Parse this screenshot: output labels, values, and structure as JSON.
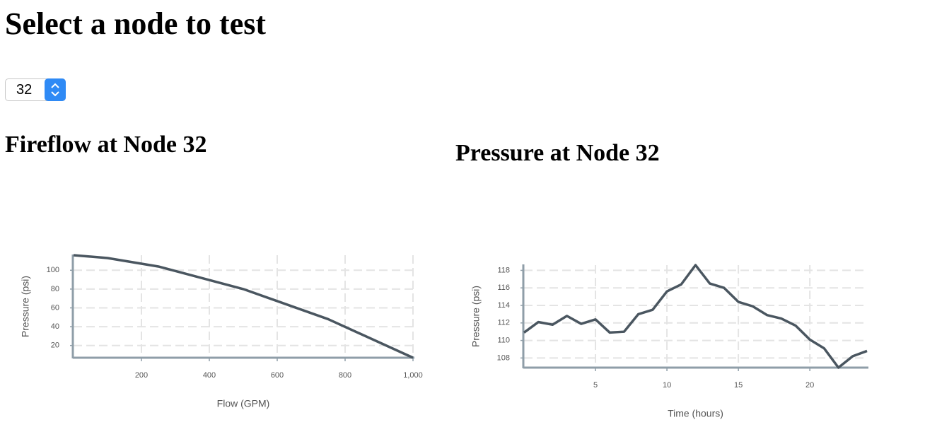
{
  "header": {
    "title": "Select a node to test"
  },
  "select": {
    "value": "32"
  },
  "chart_data": [
    {
      "type": "line",
      "title": "Fireflow at Node 32",
      "xlabel": "Flow (GPM)",
      "ylabel": "Pressure (psi)",
      "x": [
        0,
        100,
        250,
        500,
        750,
        1000
      ],
      "values": [
        116,
        113,
        104,
        80,
        48,
        7
      ],
      "xlim": [
        0,
        1000
      ],
      "ylim": [
        7,
        116
      ],
      "xticks": [
        200,
        400,
        600,
        800,
        {
          "value": 1000,
          "label": "1,000"
        }
      ],
      "yticks": [
        20,
        40,
        60,
        80,
        100
      ],
      "grid": true,
      "color": "#4a5660"
    },
    {
      "type": "line",
      "title": "Pressure at Node 32",
      "xlabel": "Time (hours)",
      "ylabel": "Pressure (psi)",
      "x": [
        0,
        1,
        2,
        3,
        4,
        5,
        6,
        7,
        8,
        9,
        10,
        11,
        12,
        13,
        14,
        15,
        16,
        17,
        18,
        19,
        20,
        21,
        22,
        23,
        24
      ],
      "values": [
        110.9,
        112.1,
        111.8,
        112.8,
        111.9,
        112.4,
        110.9,
        111.0,
        113.0,
        113.5,
        115.6,
        116.4,
        118.6,
        116.5,
        116.0,
        114.4,
        113.9,
        112.9,
        112.5,
        111.7,
        110.1,
        109.1,
        106.9,
        108.2,
        108.8
      ],
      "xlim": [
        0,
        24
      ],
      "ylim": [
        106.9,
        118.6
      ],
      "xticks": [
        5,
        10,
        15,
        20
      ],
      "yticks": [
        108,
        110,
        112,
        114,
        116,
        118
      ],
      "grid": true,
      "color": "#4a5660"
    }
  ]
}
